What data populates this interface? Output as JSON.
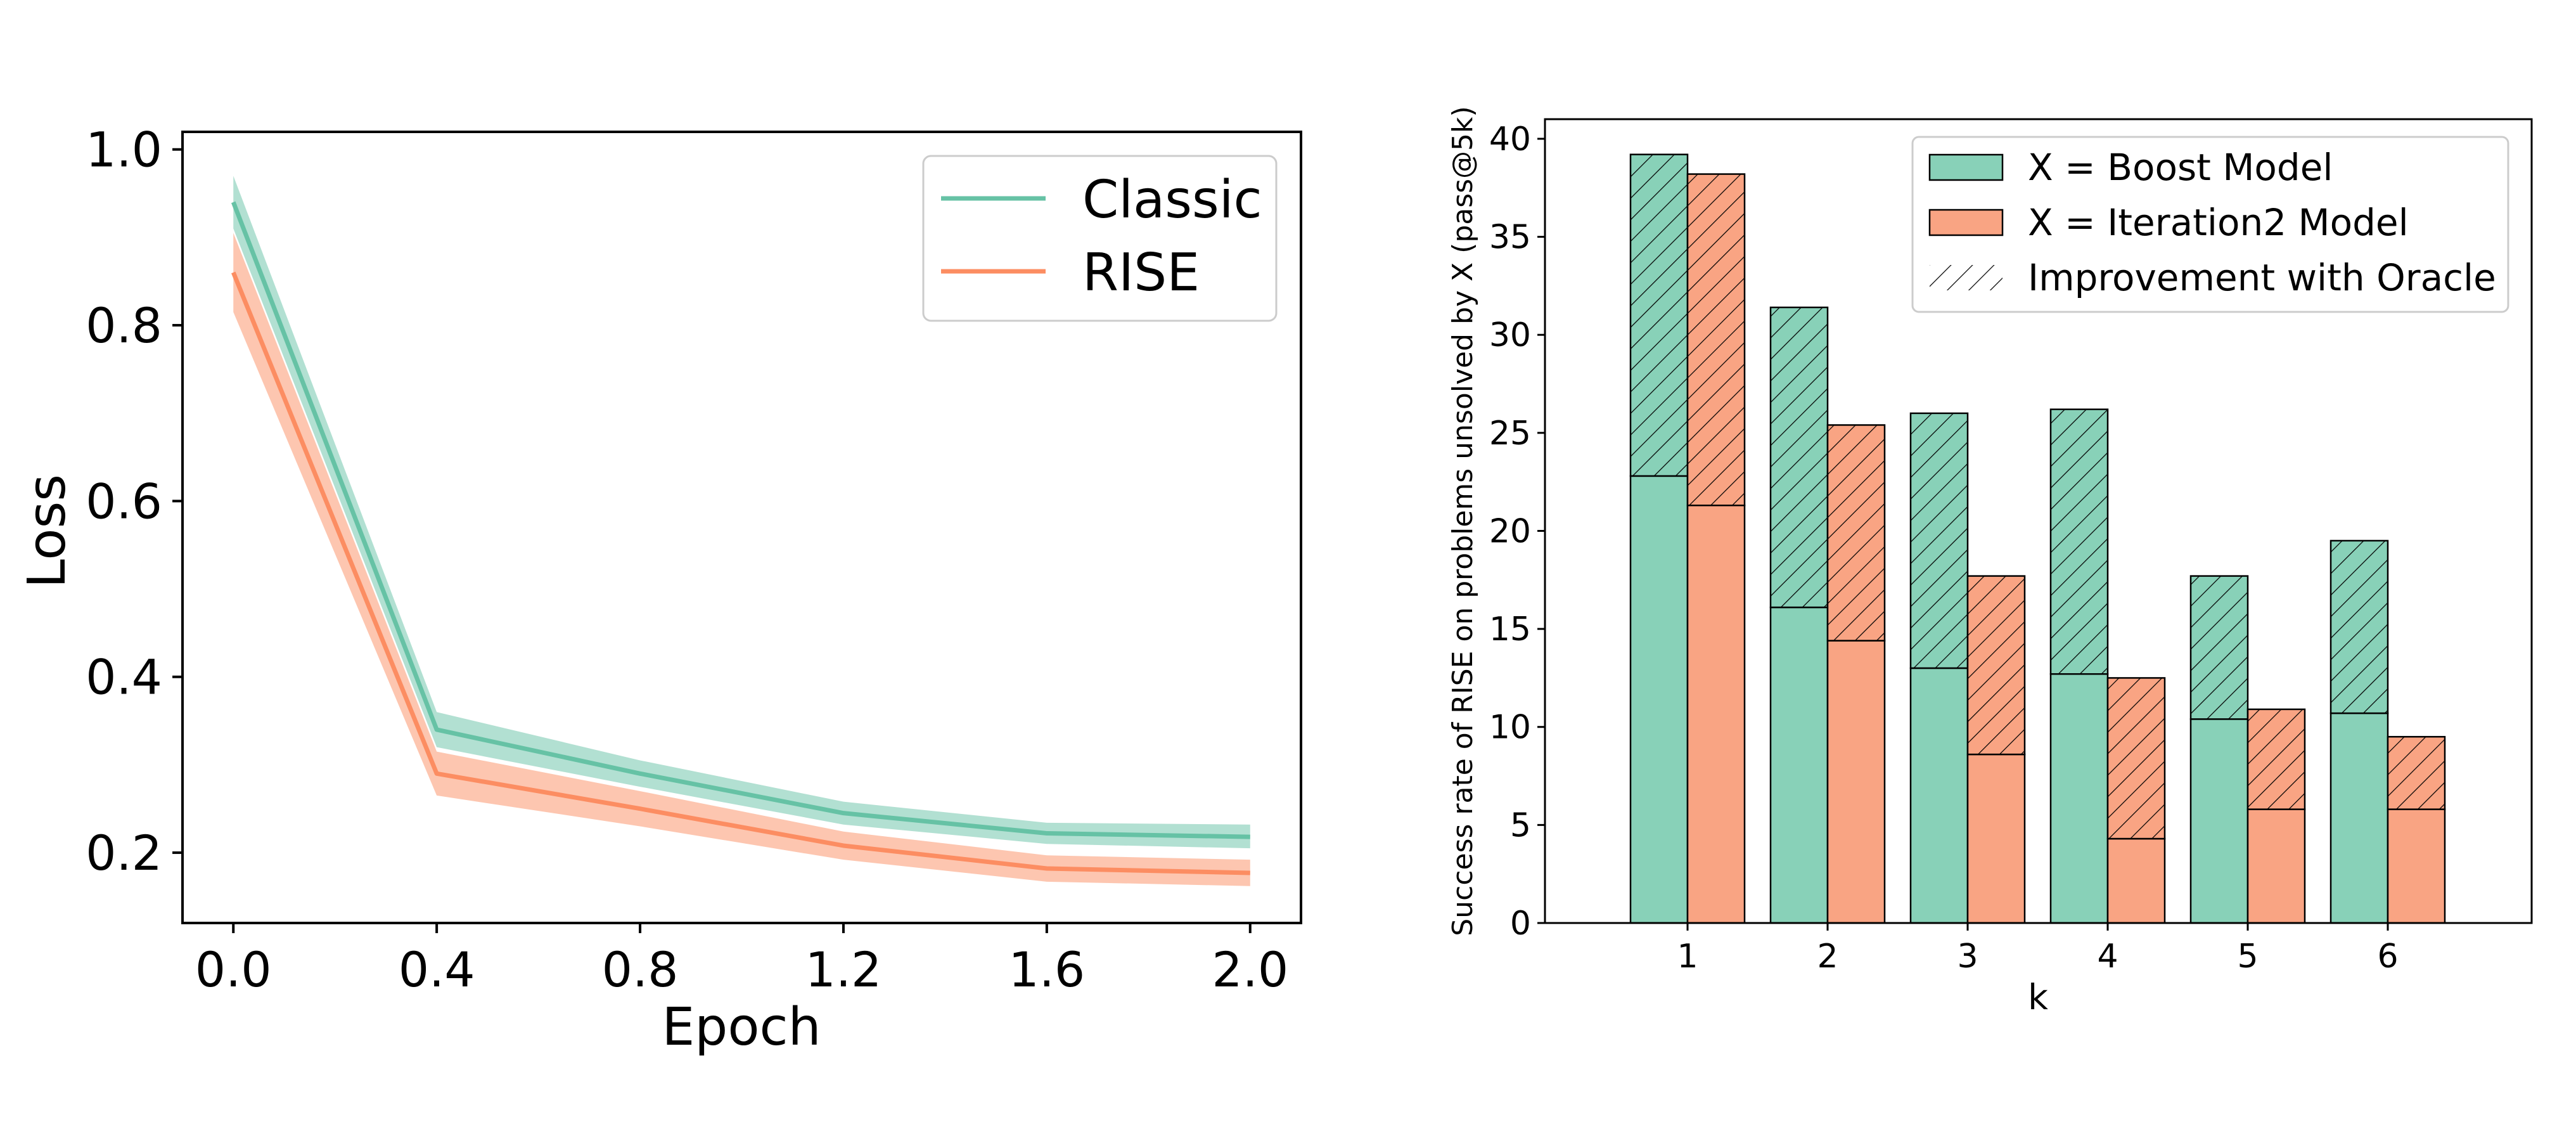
{
  "chart_data": [
    {
      "type": "line",
      "xlabel": "Epoch",
      "ylabel": "Loss",
      "xlim": [
        -0.1,
        2.1
      ],
      "ylim": [
        0.12,
        1.02
      ],
      "xticks": [
        0.0,
        0.4,
        0.8,
        1.2,
        1.6,
        2.0
      ],
      "xtick_labels": [
        "0.0",
        "0.4",
        "0.8",
        "1.2",
        "1.6",
        "2.0"
      ],
      "yticks": [
        0.2,
        0.4,
        0.6,
        0.8,
        1.0
      ],
      "ytick_labels": [
        "0.2",
        "0.4",
        "0.6",
        "0.8",
        "1.0"
      ],
      "grid": false,
      "legend_position": "top-right",
      "x": [
        0.0,
        0.4,
        0.8,
        1.2,
        1.6,
        2.0
      ],
      "series": [
        {
          "name": "Classic",
          "color": "#66c2a5",
          "values": [
            0.94,
            0.34,
            0.29,
            0.245,
            0.222,
            0.218
          ],
          "lower": [
            0.91,
            0.32,
            0.275,
            0.232,
            0.21,
            0.205
          ],
          "upper": [
            0.97,
            0.36,
            0.305,
            0.258,
            0.234,
            0.232
          ]
        },
        {
          "name": "RISE",
          "color": "#fc8d62",
          "values": [
            0.86,
            0.29,
            0.25,
            0.208,
            0.182,
            0.177
          ],
          "lower": [
            0.815,
            0.265,
            0.23,
            0.192,
            0.167,
            0.162
          ],
          "upper": [
            0.905,
            0.315,
            0.27,
            0.224,
            0.197,
            0.192
          ]
        }
      ]
    },
    {
      "type": "bar",
      "xlabel": "k",
      "ylabel": "Success rate of RISE on problems unsolved by X (pass@5k)",
      "categories": [
        "1",
        "2",
        "3",
        "4",
        "5",
        "6"
      ],
      "ylim": [
        0,
        41
      ],
      "yticks": [
        0,
        5,
        10,
        15,
        20,
        25,
        30,
        35,
        40
      ],
      "ytick_labels": [
        "0",
        "5",
        "10",
        "15",
        "20",
        "25",
        "30",
        "35",
        "40"
      ],
      "grid": false,
      "legend_position": "top-right",
      "series": [
        {
          "name": "X = Boost Model",
          "color": "#88d1b8",
          "values": [
            22.8,
            16.1,
            13.0,
            12.7,
            10.4,
            10.7
          ],
          "with_oracle": [
            39.2,
            31.4,
            26.0,
            26.2,
            17.7,
            19.5
          ]
        },
        {
          "name": "X = Iteration2 Model",
          "color": "#f9a483",
          "values": [
            21.3,
            14.4,
            8.6,
            4.3,
            5.8,
            5.8
          ],
          "with_oracle": [
            38.2,
            25.4,
            17.7,
            12.5,
            10.9,
            9.5
          ]
        }
      ],
      "hatch_legend": "Improvement with Oracle"
    }
  ]
}
